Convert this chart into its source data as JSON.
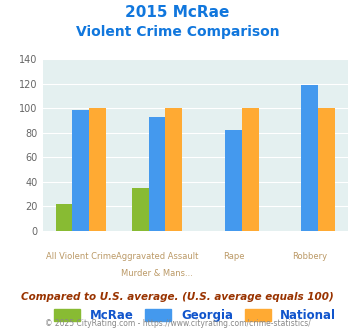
{
  "title_line1": "2015 McRae",
  "title_line2": "Violent Crime Comparison",
  "cat_labels_top": [
    "",
    "Aggravated Assault",
    "",
    ""
  ],
  "cat_labels_bot": [
    "All Violent Crime",
    "Murder & Mans...",
    "Rape",
    "Robbery"
  ],
  "mcrae": [
    22,
    35,
    0,
    0
  ],
  "georgia": [
    99,
    93,
    82,
    119
  ],
  "national": [
    100,
    100,
    100,
    100
  ],
  "mcrae_color": "#88bb33",
  "georgia_color": "#4499ee",
  "national_color": "#ffaa33",
  "ylim": [
    0,
    140
  ],
  "yticks": [
    0,
    20,
    40,
    60,
    80,
    100,
    120,
    140
  ],
  "bg_color": "#e4f0f0",
  "title_color": "#1177dd",
  "xlabel_color": "#bb9966",
  "footer_note": "Compared to U.S. average. (U.S. average equals 100)",
  "copyright": "© 2025 CityRating.com - https://www.cityrating.com/crime-statistics/",
  "copyright_link_color": "#4499ee",
  "legend_labels": [
    "McRae",
    "Georgia",
    "National"
  ],
  "legend_color": "#1155cc",
  "footer_color": "#993300",
  "copyright_color": "#888888",
  "bar_width": 0.22
}
